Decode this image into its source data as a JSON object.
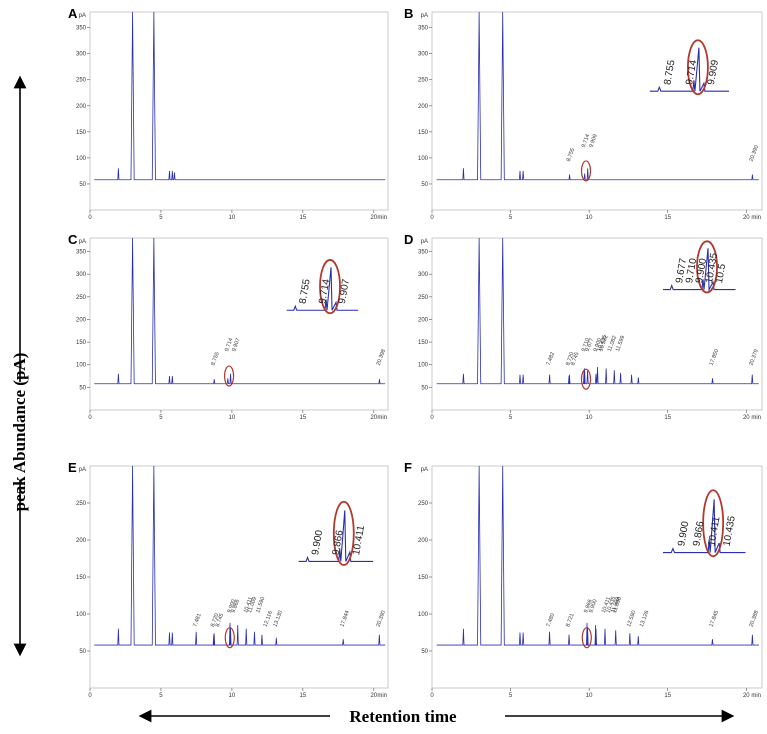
{
  "figure": {
    "y_axis_title": "peak Abundance (pA)",
    "x_axis_title": "Retention time"
  },
  "chart_data": [
    {
      "panel": "A",
      "type": "line",
      "unit": "pA",
      "x_unit": "min",
      "xlim": [
        0,
        21
      ],
      "ylim": [
        0,
        380
      ],
      "yticks": [
        50,
        100,
        150,
        200,
        250,
        300,
        350
      ],
      "xticks": [
        0,
        5,
        10,
        15,
        20
      ],
      "baseline": 58,
      "series": [
        {
          "values": [
            [
              2.0,
              80
            ],
            [
              3.0,
              380
            ],
            [
              4.5,
              380
            ],
            [
              5.6,
              75
            ],
            [
              5.8,
              75
            ],
            [
              5.95,
              72
            ]
          ]
        }
      ],
      "peak_labels": [],
      "markers": [],
      "inset": null
    },
    {
      "panel": "B",
      "type": "line",
      "unit": "pA",
      "x_unit": "min",
      "xlim": [
        0,
        21
      ],
      "ylim": [
        0,
        380
      ],
      "yticks": [
        50,
        100,
        150,
        200,
        250,
        300,
        350
      ],
      "xticks": [
        0,
        5,
        10,
        15,
        20
      ],
      "baseline": 58,
      "series": [
        {
          "values": [
            [
              2.0,
              80
            ],
            [
              3.0,
              380
            ],
            [
              4.5,
              380
            ],
            [
              5.6,
              75
            ],
            [
              5.8,
              75
            ],
            [
              8.755,
              68
            ],
            [
              9.714,
              70
            ],
            [
              9.909,
              80
            ],
            [
              20.39,
              68
            ]
          ]
        }
      ],
      "peak_labels": [
        "8.755",
        "9.714",
        "9.909",
        "20.390"
      ],
      "markers": [
        {
          "x": 9.8,
          "y": 75
        }
      ],
      "inset": {
        "labels": [
          "8.755",
          "9.714",
          "9.909"
        ]
      }
    },
    {
      "panel": "C",
      "type": "line",
      "unit": "pA",
      "x_unit": "min",
      "xlim": [
        0,
        21
      ],
      "ylim": [
        0,
        380
      ],
      "yticks": [
        50,
        100,
        150,
        200,
        250,
        300,
        350
      ],
      "xticks": [
        0,
        5,
        10,
        15,
        20
      ],
      "baseline": 58,
      "series": [
        {
          "values": [
            [
              2.0,
              80
            ],
            [
              3.0,
              380
            ],
            [
              4.5,
              380
            ],
            [
              5.6,
              75
            ],
            [
              5.8,
              75
            ],
            [
              8.755,
              68
            ],
            [
              9.714,
              70
            ],
            [
              9.907,
              80
            ],
            [
              20.398,
              68
            ]
          ]
        }
      ],
      "peak_labels": [
        "8.755",
        "9.714",
        "9.907",
        "20.398"
      ],
      "markers": [
        {
          "x": 9.8,
          "y": 75
        }
      ],
      "inset": {
        "labels": [
          "8.755",
          "9.714",
          "9.907"
        ]
      }
    },
    {
      "panel": "D",
      "type": "line",
      "unit": "pA",
      "x_unit": "min",
      "xlim": [
        0,
        21
      ],
      "ylim": [
        0,
        380
      ],
      "yticks": [
        50,
        100,
        150,
        200,
        250,
        300,
        350
      ],
      "xticks": [
        0,
        5,
        10,
        15,
        20
      ],
      "baseline": 58,
      "series": [
        {
          "values": [
            [
              2.0,
              80
            ],
            [
              3.0,
              380
            ],
            [
              4.5,
              380
            ],
            [
              5.6,
              78
            ],
            [
              5.8,
              78
            ],
            [
              7.482,
              78
            ],
            [
              8.72,
              75
            ],
            [
              8.745,
              78
            ],
            [
              9.677,
              85
            ],
            [
              9.71,
              92
            ],
            [
              9.9,
              87
            ],
            [
              10.435,
              80
            ],
            [
              10.532,
              95
            ],
            [
              11.082,
              92
            ],
            [
              11.599,
              88
            ],
            [
              12.0,
              82
            ],
            [
              12.7,
              78
            ],
            [
              13.13,
              72
            ],
            [
              17.85,
              70
            ],
            [
              20.379,
              78
            ]
          ]
        }
      ],
      "peak_labels": [
        "7.482",
        "8.720",
        "8.745",
        "9.710",
        "9.677",
        "9.900",
        "10.435",
        "10.532",
        "11.082",
        "11.599",
        "17.850",
        "20.379"
      ],
      "markers": [
        {
          "x": 9.8,
          "y": 68
        }
      ],
      "inset": {
        "labels": [
          "9.677",
          "9.710",
          "9.900",
          "10.435",
          "10.5"
        ]
      }
    },
    {
      "panel": "E",
      "type": "line",
      "unit": "pA",
      "x_unit": "min",
      "xlim": [
        0,
        21
      ],
      "ylim": [
        0,
        300
      ],
      "yticks": [
        50,
        100,
        150,
        200,
        250
      ],
      "xticks": [
        0,
        5,
        10,
        15,
        20
      ],
      "baseline": 58,
      "series": [
        {
          "values": [
            [
              2.0,
              80
            ],
            [
              3.0,
              300
            ],
            [
              4.5,
              300
            ],
            [
              5.6,
              75
            ],
            [
              5.8,
              75
            ],
            [
              7.481,
              76
            ],
            [
              8.72,
              72
            ],
            [
              8.745,
              74
            ],
            [
              9.9,
              82
            ],
            [
              9.866,
              88
            ],
            [
              10.411,
              85
            ],
            [
              11.009,
              80
            ],
            [
              11.59,
              76
            ],
            [
              12.116,
              72
            ],
            [
              13.13,
              68
            ],
            [
              17.844,
              66
            ],
            [
              20.39,
              72
            ]
          ]
        }
      ],
      "peak_labels": [
        "7.481",
        "8.720",
        "8.745",
        "9.900",
        "9.866",
        "10.411",
        "11.009",
        "11.590",
        "12.116",
        "13.130",
        "17.844",
        "20.390"
      ],
      "markers": [
        {
          "x": 9.85,
          "y": 68
        }
      ],
      "inset": {
        "labels": [
          "9.900",
          "9.866",
          "10.411"
        ]
      }
    },
    {
      "panel": "F",
      "type": "line",
      "unit": "pA",
      "x_unit": "min",
      "xlim": [
        0,
        21
      ],
      "ylim": [
        0,
        300
      ],
      "yticks": [
        50,
        100,
        150,
        200,
        250
      ],
      "xticks": [
        0,
        5,
        10,
        15,
        20
      ],
      "baseline": 58,
      "series": [
        {
          "values": [
            [
              2.0,
              80
            ],
            [
              3.0,
              300
            ],
            [
              4.5,
              300
            ],
            [
              5.6,
              75
            ],
            [
              5.8,
              75
            ],
            [
              7.48,
              76
            ],
            [
              8.721,
              72
            ],
            [
              9.866,
              88
            ],
            [
              9.9,
              82
            ],
            [
              10.411,
              85
            ],
            [
              10.435,
              80
            ],
            [
              11.009,
              80
            ],
            [
              11.69,
              78
            ],
            [
              12.59,
              74
            ],
            [
              13.126,
              70
            ],
            [
              17.845,
              66
            ],
            [
              20.388,
              72
            ]
          ]
        }
      ],
      "peak_labels": [
        "7.480",
        "8.721",
        "9.866",
        "9.900",
        "10.411",
        "10.435",
        "11.009",
        "11.690",
        "12.590",
        "13.126",
        "17.845",
        "20.388"
      ],
      "markers": [
        {
          "x": 9.85,
          "y": 68
        }
      ],
      "inset": {
        "labels": [
          "9.900",
          "9.866",
          "10.411",
          "10.435"
        ]
      }
    }
  ]
}
